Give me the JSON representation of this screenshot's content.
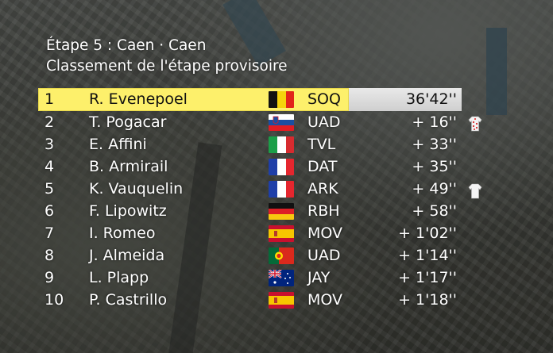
{
  "title": "Étape 5 : Caen · Caen",
  "subtitle": "Classement de l'étape provisoire",
  "rows": [
    {
      "pos": "1",
      "name": "R. Evenepoel",
      "team": "SOQ",
      "time": "36'42''",
      "flag": "belgium-flag-icon"
    },
    {
      "pos": "2",
      "name": "T. Pogacar",
      "team": "UAD",
      "time": "+ 16''",
      "flag": "slovenia-flag-icon"
    },
    {
      "pos": "3",
      "name": "E. Affini",
      "team": "TVL",
      "time": "+ 33''",
      "flag": "italy-flag-icon"
    },
    {
      "pos": "4",
      "name": "B. Armirail",
      "team": "DAT",
      "time": "+ 35''",
      "flag": "france-flag-icon"
    },
    {
      "pos": "5",
      "name": "K. Vauquelin",
      "team": "ARK",
      "time": "+ 49''",
      "flag": "france-flag-icon"
    },
    {
      "pos": "6",
      "name": "F. Lipowitz",
      "team": "RBH",
      "time": "+ 58''",
      "flag": "germany-flag-icon"
    },
    {
      "pos": "7",
      "name": "I. Romeo",
      "team": "MOV",
      "time": "+ 1'02''",
      "flag": "spain-flag-icon"
    },
    {
      "pos": "8",
      "name": "J. Almeida",
      "team": "UAD",
      "time": "+ 1'14''",
      "flag": "portugal-flag-icon"
    },
    {
      "pos": "9",
      "name": "L. Plapp",
      "team": "JAY",
      "time": "+ 1'17''",
      "flag": "australia-flag-icon"
    },
    {
      "pos": "10",
      "name": "P. Castrillo",
      "team": "MOV",
      "time": "+ 1'18''",
      "flag": "spain-flag-icon"
    }
  ],
  "jerseys": [
    {
      "row": 2,
      "icon": "polka-dot-jersey-icon"
    },
    {
      "row": 5,
      "icon": "white-jersey-icon"
    }
  ],
  "colors": {
    "leader_bar": "#fdf06b",
    "time_box": "#dcdcdc"
  }
}
